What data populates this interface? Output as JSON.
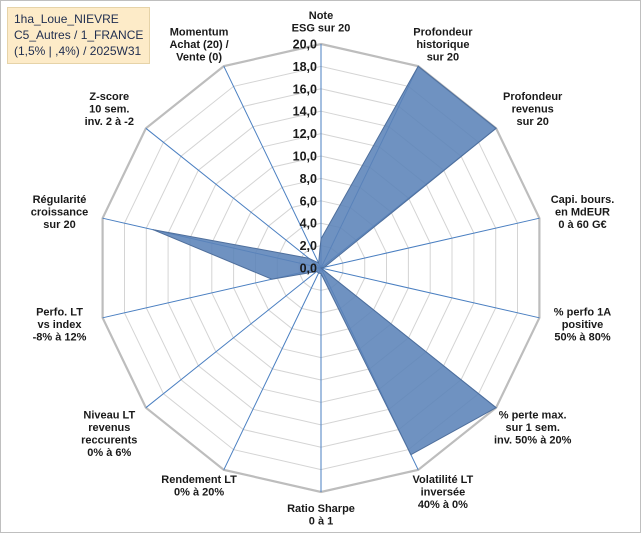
{
  "info": {
    "line1": "1ha_Loue_NIEVRE",
    "line2": "C5_Autres / 1_FRANCE",
    "line3": "(1,5% | ,4%) / 2025W31"
  },
  "chart_data": {
    "type": "radar",
    "title": "",
    "rmin": 0,
    "rmax": 20,
    "tick_step": 2,
    "tick_labels": [
      "0,0",
      "2,0",
      "4,0",
      "6,0",
      "8,0",
      "10,0",
      "12,0",
      "14,0",
      "16,0",
      "18,0",
      "20,0"
    ],
    "axes": [
      {
        "label": [
          "Note",
          "ESG sur 20"
        ],
        "value": 2.6
      },
      {
        "label": [
          "Profondeur",
          "historique",
          "sur 20"
        ],
        "value": 20
      },
      {
        "label": [
          "Profondeur",
          "revenus",
          "sur 20"
        ],
        "value": 20
      },
      {
        "label": [
          "Capi. bours.",
          "en MdEUR",
          "0 à 60 G€"
        ],
        "value": 0.3
      },
      {
        "label": [
          "% perfo 1A",
          "positive",
          "50% à 80%"
        ],
        "value": 0
      },
      {
        "label": [
          "% perte max.",
          "sur 1 sem.",
          "inv. 50% à 20%"
        ],
        "value": 20
      },
      {
        "label": [
          "Volatilité LT",
          "inversée",
          "40% à 0%"
        ],
        "value": 18.5
      },
      {
        "label": [
          "Ratio Sharpe",
          "0 à 1"
        ],
        "value": 0.5
      },
      {
        "label": [
          "Rendement LT",
          "0% à 20%"
        ],
        "value": 0.5
      },
      {
        "label": [
          "Niveau LT",
          "revenus",
          "reccurents",
          "0% à 6%"
        ],
        "value": 0.5
      },
      {
        "label": [
          "Perfo. LT",
          "vs index",
          "-8% à 12%"
        ],
        "value": 4.5
      },
      {
        "label": [
          "Régularité",
          "croissance",
          "sur 20"
        ],
        "value": 15.4
      },
      {
        "label": [
          "Z-score",
          "10 sem.",
          "inv. 2 à -2"
        ],
        "value": 1.4
      },
      {
        "label": [
          "Momentum",
          "Achat (20) /",
          "Vente (0)"
        ],
        "value": 0.5
      }
    ],
    "colors": {
      "fill": "#5b83b8",
      "stroke": "#4f6f9c",
      "grid": "#d4d4d4",
      "spoke": "#4a7fc1"
    }
  }
}
